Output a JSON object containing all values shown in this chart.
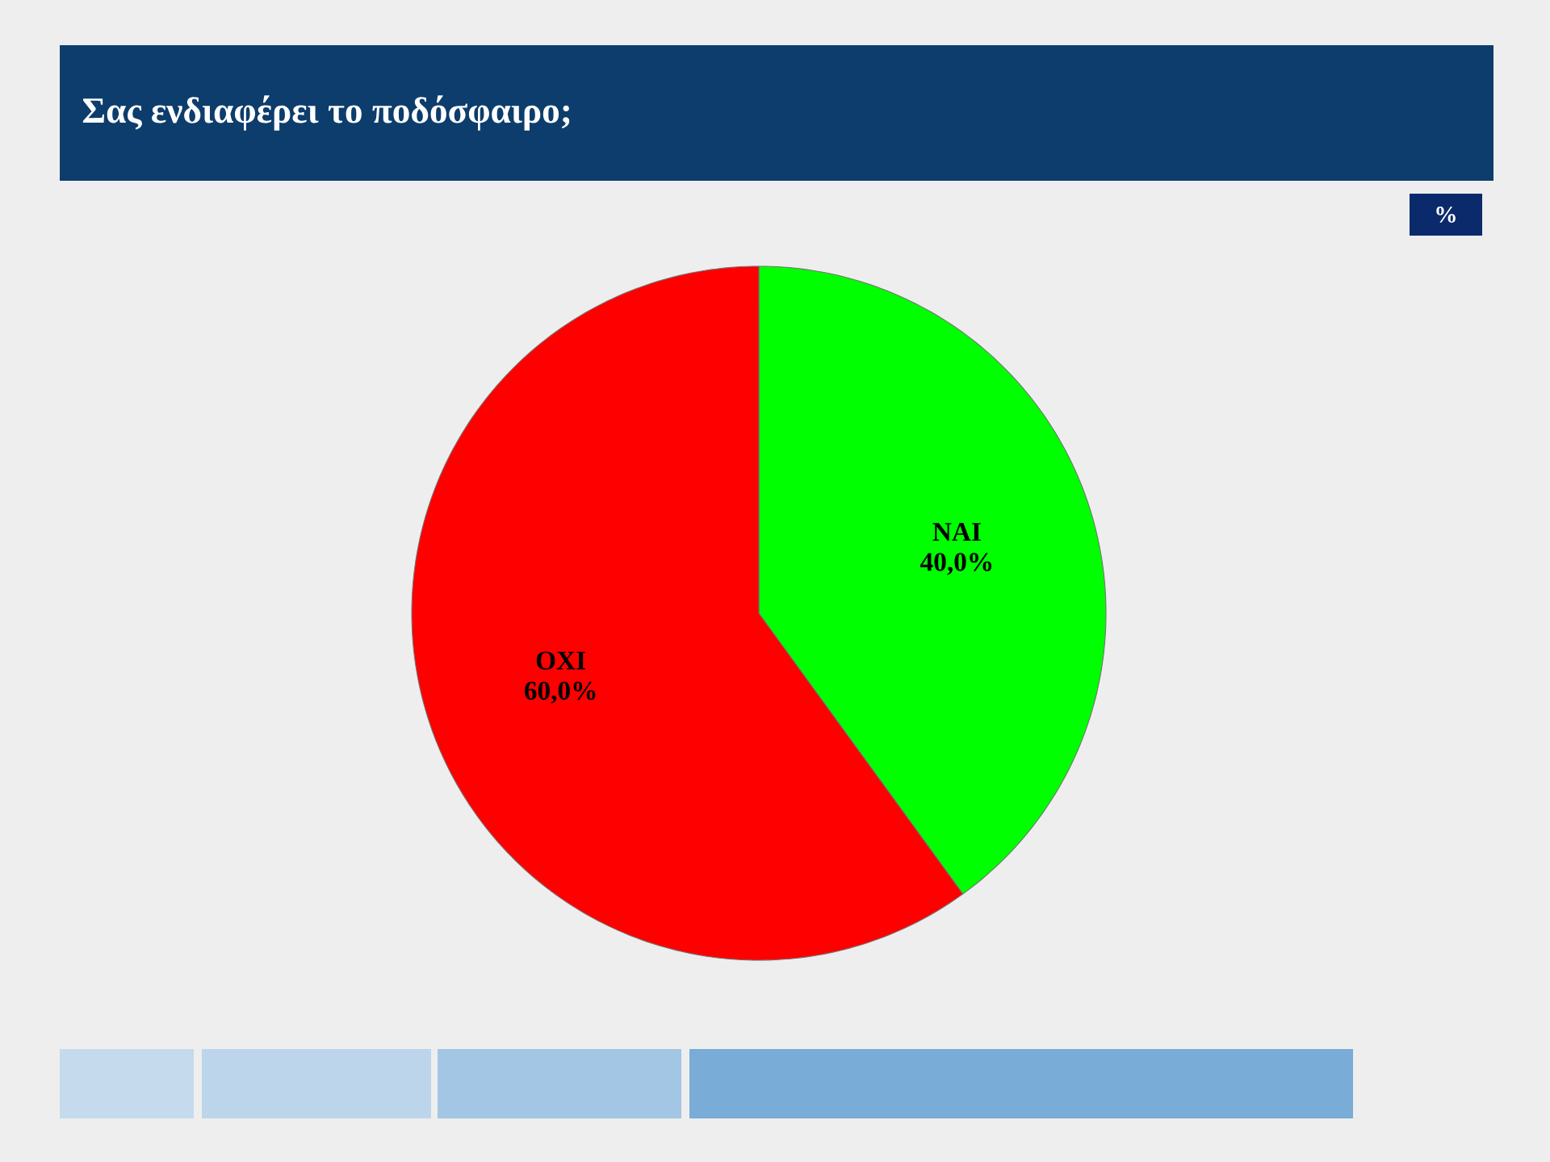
{
  "chart_data": {
    "type": "pie",
    "title": "Σας ενδιαφέρει το ποδόσφαιρο;",
    "categories": [
      "ΝΑΙ",
      "ΟΧΙ"
    ],
    "values": [
      40,
      60
    ],
    "colors": [
      "#00ff00",
      "#ff0000"
    ],
    "value_labels": [
      "40,0%",
      "60,0%"
    ],
    "annotations": [
      "%"
    ]
  }
}
